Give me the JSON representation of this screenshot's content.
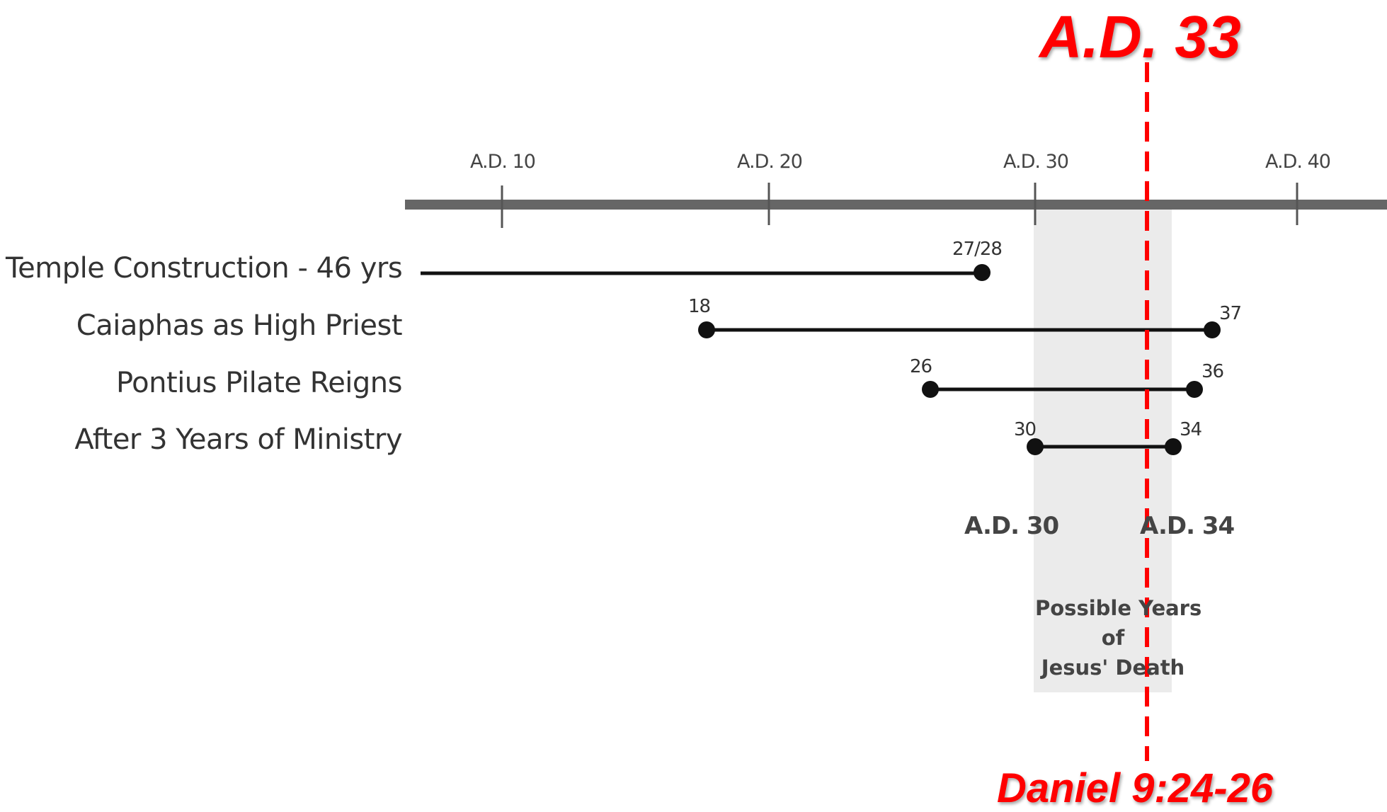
{
  "axis": {
    "ticks": [
      "A.D. 10",
      "A.D. 20",
      "A.D. 30",
      "A.D. 40"
    ]
  },
  "rows": [
    {
      "label": "Temple Construction - 46 yrs",
      "start_label": "",
      "end_label": "27/28"
    },
    {
      "label": "Caiaphas as High Priest",
      "start_label": "18",
      "end_label": "37"
    },
    {
      "label": "Pontius Pilate Reigns",
      "start_label": "26",
      "end_label": "36"
    },
    {
      "label": "After 3 Years of Ministry",
      "start_label": "30",
      "end_label": "34"
    }
  ],
  "range": {
    "start_label": "A.D. 30",
    "end_label": "A.D. 34",
    "note_line1": "Possible Years",
    "note_line2": "of",
    "note_line3": "Jesus' Death"
  },
  "highlight": {
    "year": "A.D. 33",
    "reference": "Daniel 9:24-26"
  },
  "colors": {
    "axis": "#666666",
    "bars": "#111111",
    "shade": "#ebebeb",
    "highlight": "#ff0000"
  }
}
